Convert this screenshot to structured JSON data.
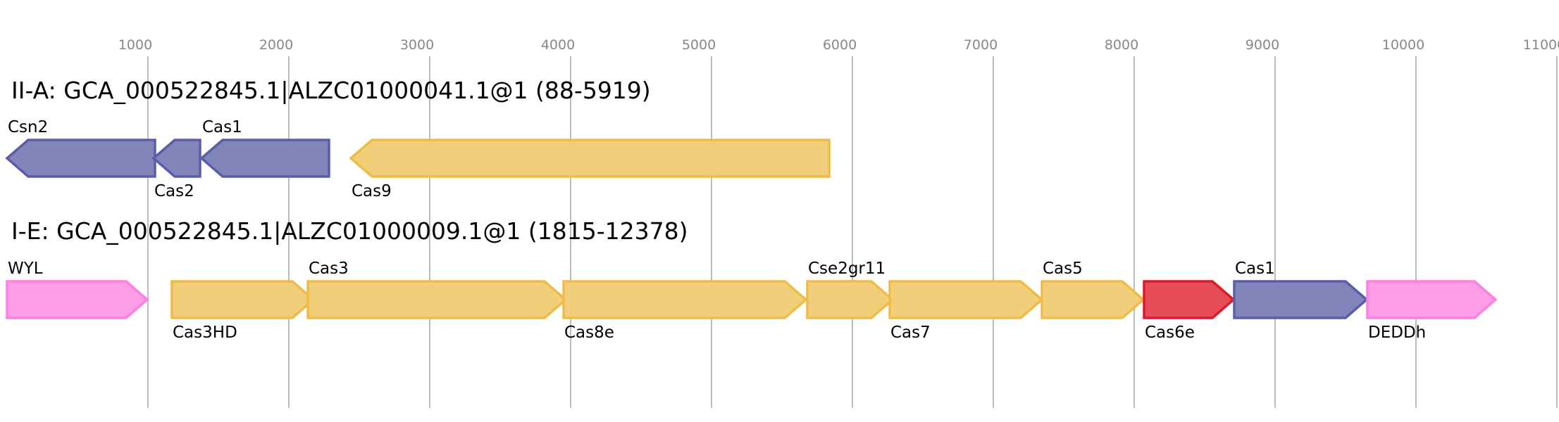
{
  "chart_data": {
    "type": "gene-map",
    "axis": {
      "ticks": [
        1000,
        2000,
        3000,
        4000,
        5000,
        6000,
        7000,
        8000,
        9000,
        10000,
        11000
      ],
      "range": [
        0,
        11000
      ]
    },
    "colors": {
      "purple": {
        "fill": "#7b7eb5",
        "stroke": "#5a5ea8"
      },
      "yellow": {
        "fill": "#f0cc73",
        "stroke": "#efbc48"
      },
      "pink": {
        "fill": "#ff99e6",
        "stroke": "#ff80e0"
      },
      "red": {
        "fill": "#e5434f",
        "stroke": "#dc1a2a"
      }
    },
    "tracks": [
      {
        "title": "II-A: GCA_000522845.1|ALZC01000041.1@1 (88-5919)",
        "genes": [
          {
            "name": "Csn2",
            "start": 0,
            "end": 1050,
            "strand": "-",
            "color": "purple",
            "label_pos": "above"
          },
          {
            "name": "Cas2",
            "start": 1040,
            "end": 1370,
            "strand": "-",
            "color": "purple",
            "label_pos": "below"
          },
          {
            "name": "Cas1",
            "start": 1380,
            "end": 2285,
            "strand": "-",
            "color": "purple",
            "label_pos": "above"
          },
          {
            "name": "Cas9",
            "start": 2440,
            "end": 5835,
            "strand": "-",
            "color": "yellow",
            "label_pos": "below"
          }
        ]
      },
      {
        "title": "I-E: GCA_000522845.1|ALZC01000009.1@1 (1815-12378)",
        "genes": [
          {
            "name": "WYL",
            "start": 0,
            "end": 995,
            "strand": "+",
            "color": "pink",
            "label_pos": "above"
          },
          {
            "name": "Cas3HD",
            "start": 1170,
            "end": 2175,
            "strand": "+",
            "color": "yellow",
            "label_pos": "below"
          },
          {
            "name": "Cas3",
            "start": 2135,
            "end": 3965,
            "strand": "+",
            "color": "yellow",
            "label_pos": "above"
          },
          {
            "name": "Cas8e",
            "start": 3950,
            "end": 5670,
            "strand": "+",
            "color": "yellow",
            "label_pos": "below"
          },
          {
            "name": "Cse2gr11",
            "start": 5680,
            "end": 6285,
            "strand": "+",
            "color": "yellow",
            "label_pos": "above"
          },
          {
            "name": "Cas7",
            "start": 6265,
            "end": 7345,
            "strand": "+",
            "color": "yellow",
            "label_pos": "below"
          },
          {
            "name": "Cas5",
            "start": 7345,
            "end": 8065,
            "strand": "+",
            "color": "yellow",
            "label_pos": "above"
          },
          {
            "name": "Cas6e",
            "start": 8070,
            "end": 8705,
            "strand": "+",
            "color": "red",
            "label_pos": "below"
          },
          {
            "name": "Cas1",
            "start": 8710,
            "end": 9650,
            "strand": "+",
            "color": "purple",
            "label_pos": "above"
          },
          {
            "name": "DEDDh",
            "start": 9655,
            "end": 10565,
            "strand": "+",
            "color": "pink",
            "label_pos": "below"
          }
        ]
      }
    ]
  }
}
